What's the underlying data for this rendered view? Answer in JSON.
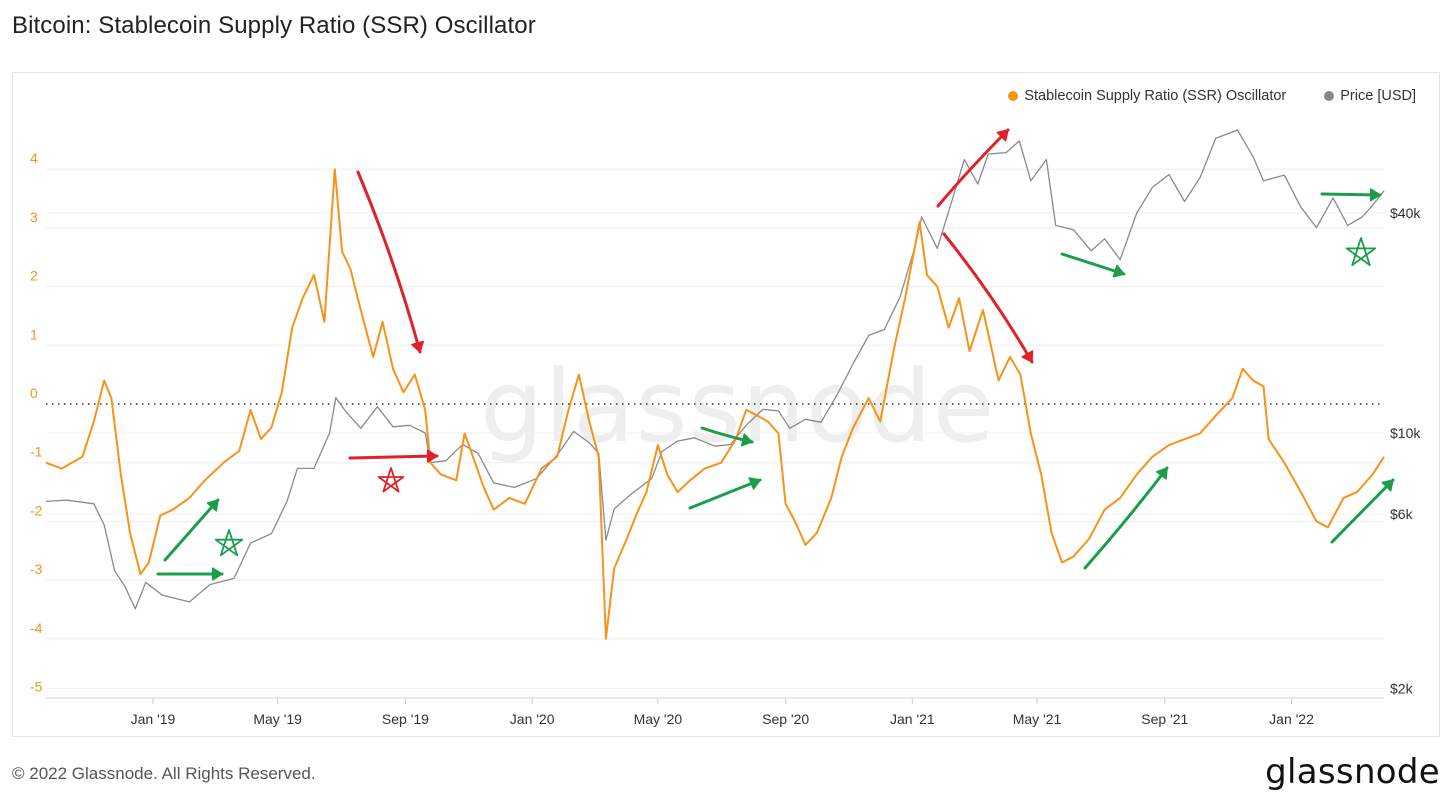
{
  "title": "Bitcoin: Stablecoin Supply Ratio (SSR) Oscillator",
  "footer": "© 2022 Glassnode. All Rights Reserved.",
  "brand": "glassnode",
  "watermark": "glassnode",
  "colors": {
    "ssr": "#f7931a",
    "price": "#888888",
    "red_annot": "#e0202a",
    "green_annot": "#1a9e4b"
  },
  "chart_data": {
    "type": "line",
    "x_ticks": [
      "Jan '19",
      "May '19",
      "Sep '19",
      "Jan '20",
      "May '20",
      "Sep '20",
      "Jan '21",
      "May '21",
      "Sep '21",
      "Jan '22"
    ],
    "y_left_ticks": [
      "4",
      "3",
      "2",
      "1",
      "0",
      "-1",
      "-2",
      "-3",
      "-4",
      "-5"
    ],
    "y_left_range": [
      -5,
      4.5
    ],
    "y_right_ticks": [
      "$40k",
      "$10k",
      "$6k",
      "$2k"
    ],
    "y_right_scale": "log",
    "reference_line_y": 0,
    "legend_position": "top-right",
    "series": [
      {
        "name": "Stablecoin Supply Ratio (SSR) Oscillator",
        "axis": "left",
        "points": [
          [
            "2018-09-20",
            -1.0
          ],
          [
            "2018-10-05",
            -1.1
          ],
          [
            "2018-10-25",
            -0.9
          ],
          [
            "2018-11-05",
            -0.3
          ],
          [
            "2018-11-15",
            0.4
          ],
          [
            "2018-11-22",
            0.1
          ],
          [
            "2018-12-01",
            -1.2
          ],
          [
            "2018-12-10",
            -2.2
          ],
          [
            "2018-12-20",
            -2.9
          ],
          [
            "2018-12-28",
            -2.7
          ],
          [
            "2019-01-08",
            -1.9
          ],
          [
            "2019-01-20",
            -1.8
          ],
          [
            "2019-02-05",
            -1.6
          ],
          [
            "2019-02-20",
            -1.3
          ],
          [
            "2019-03-10",
            -1.0
          ],
          [
            "2019-03-25",
            -0.8
          ],
          [
            "2019-04-05",
            -0.1
          ],
          [
            "2019-04-15",
            -0.6
          ],
          [
            "2019-04-25",
            -0.4
          ],
          [
            "2019-05-05",
            0.2
          ],
          [
            "2019-05-15",
            1.3
          ],
          [
            "2019-05-25",
            1.8
          ],
          [
            "2019-06-05",
            2.2
          ],
          [
            "2019-06-15",
            1.4
          ],
          [
            "2019-06-25",
            4.0
          ],
          [
            "2019-07-02",
            2.6
          ],
          [
            "2019-07-10",
            2.3
          ],
          [
            "2019-07-20",
            1.6
          ],
          [
            "2019-08-01",
            0.8
          ],
          [
            "2019-08-10",
            1.4
          ],
          [
            "2019-08-20",
            0.6
          ],
          [
            "2019-08-30",
            0.2
          ],
          [
            "2019-09-10",
            0.5
          ],
          [
            "2019-09-20",
            -0.1
          ],
          [
            "2019-09-25",
            -1.0
          ],
          [
            "2019-10-05",
            -1.2
          ],
          [
            "2019-10-20",
            -1.3
          ],
          [
            "2019-10-28",
            -0.5
          ],
          [
            "2019-11-05",
            -0.9
          ],
          [
            "2019-11-15",
            -1.4
          ],
          [
            "2019-11-25",
            -1.8
          ],
          [
            "2019-12-10",
            -1.6
          ],
          [
            "2019-12-25",
            -1.7
          ],
          [
            "2020-01-10",
            -1.1
          ],
          [
            "2020-01-25",
            -0.9
          ],
          [
            "2020-02-05",
            -0.1
          ],
          [
            "2020-02-15",
            0.5
          ],
          [
            "2020-02-25",
            -0.3
          ],
          [
            "2020-03-05",
            -0.9
          ],
          [
            "2020-03-12",
            -4.0
          ],
          [
            "2020-03-20",
            -2.8
          ],
          [
            "2020-04-01",
            -2.3
          ],
          [
            "2020-04-10",
            -1.9
          ],
          [
            "2020-04-20",
            -1.5
          ],
          [
            "2020-05-01",
            -0.7
          ],
          [
            "2020-05-10",
            -1.2
          ],
          [
            "2020-05-20",
            -1.5
          ],
          [
            "2020-06-01",
            -1.3
          ],
          [
            "2020-06-15",
            -1.1
          ],
          [
            "2020-07-01",
            -1.0
          ],
          [
            "2020-07-15",
            -0.6
          ],
          [
            "2020-07-25",
            -0.1
          ],
          [
            "2020-08-05",
            -0.2
          ],
          [
            "2020-08-15",
            -0.3
          ],
          [
            "2020-08-25",
            -0.5
          ],
          [
            "2020-09-01",
            -1.7
          ],
          [
            "2020-09-10",
            -2.0
          ],
          [
            "2020-09-20",
            -2.4
          ],
          [
            "2020-10-01",
            -2.2
          ],
          [
            "2020-10-15",
            -1.6
          ],
          [
            "2020-10-25",
            -0.9
          ],
          [
            "2020-11-05",
            -0.4
          ],
          [
            "2020-11-20",
            0.1
          ],
          [
            "2020-12-01",
            -0.3
          ],
          [
            "2020-12-15",
            1.0
          ],
          [
            "2020-12-25",
            1.8
          ],
          [
            "2021-01-08",
            3.1
          ],
          [
            "2021-01-15",
            2.2
          ],
          [
            "2021-01-25",
            2.0
          ],
          [
            "2021-02-05",
            1.3
          ],
          [
            "2021-02-15",
            1.8
          ],
          [
            "2021-02-25",
            0.9
          ],
          [
            "2021-03-10",
            1.6
          ],
          [
            "2021-03-25",
            0.4
          ],
          [
            "2021-04-05",
            0.8
          ],
          [
            "2021-04-15",
            0.5
          ],
          [
            "2021-04-25",
            -0.5
          ],
          [
            "2021-05-05",
            -1.2
          ],
          [
            "2021-05-15",
            -2.2
          ],
          [
            "2021-05-25",
            -2.7
          ],
          [
            "2021-06-05",
            -2.6
          ],
          [
            "2021-06-20",
            -2.3
          ],
          [
            "2021-07-05",
            -1.8
          ],
          [
            "2021-07-20",
            -1.6
          ],
          [
            "2021-08-05",
            -1.2
          ],
          [
            "2021-08-20",
            -0.9
          ],
          [
            "2021-09-05",
            -0.7
          ],
          [
            "2021-09-20",
            -0.6
          ],
          [
            "2021-10-05",
            -0.5
          ],
          [
            "2021-10-20",
            -0.2
          ],
          [
            "2021-11-05",
            0.1
          ],
          [
            "2021-11-15",
            0.6
          ],
          [
            "2021-11-25",
            0.4
          ],
          [
            "2021-12-05",
            0.3
          ],
          [
            "2021-12-10",
            -0.6
          ],
          [
            "2021-12-25",
            -1.0
          ],
          [
            "2022-01-10",
            -1.5
          ],
          [
            "2022-01-25",
            -2.0
          ],
          [
            "2022-02-05",
            -2.1
          ],
          [
            "2022-02-20",
            -1.6
          ],
          [
            "2022-03-05",
            -1.5
          ],
          [
            "2022-03-20",
            -1.2
          ],
          [
            "2022-03-31",
            -0.9
          ]
        ]
      },
      {
        "name": "Price [USD]",
        "axis": "right",
        "points": [
          [
            "2018-09-20",
            6500
          ],
          [
            "2018-10-10",
            6550
          ],
          [
            "2018-11-05",
            6400
          ],
          [
            "2018-11-15",
            5600
          ],
          [
            "2018-11-25",
            4200
          ],
          [
            "2018-12-05",
            3800
          ],
          [
            "2018-12-15",
            3300
          ],
          [
            "2018-12-25",
            3900
          ],
          [
            "2019-01-10",
            3600
          ],
          [
            "2019-02-05",
            3450
          ],
          [
            "2019-02-25",
            3850
          ],
          [
            "2019-03-20",
            4000
          ],
          [
            "2019-04-05",
            5000
          ],
          [
            "2019-04-25",
            5300
          ],
          [
            "2019-05-10",
            6500
          ],
          [
            "2019-05-20",
            8000
          ],
          [
            "2019-06-05",
            8000
          ],
          [
            "2019-06-20",
            10000
          ],
          [
            "2019-06-26",
            12500
          ],
          [
            "2019-07-05",
            11500
          ],
          [
            "2019-07-20",
            10300
          ],
          [
            "2019-08-05",
            11800
          ],
          [
            "2019-08-20",
            10400
          ],
          [
            "2019-09-05",
            10500
          ],
          [
            "2019-09-20",
            10000
          ],
          [
            "2019-09-25",
            8300
          ],
          [
            "2019-10-10",
            8400
          ],
          [
            "2019-10-26",
            9300
          ],
          [
            "2019-11-10",
            8800
          ],
          [
            "2019-11-25",
            7300
          ],
          [
            "2019-12-15",
            7100
          ],
          [
            "2020-01-05",
            7500
          ],
          [
            "2020-01-25",
            8700
          ],
          [
            "2020-02-10",
            10100
          ],
          [
            "2020-02-25",
            9400
          ],
          [
            "2020-03-05",
            8800
          ],
          [
            "2020-03-12",
            5100
          ],
          [
            "2020-03-20",
            6200
          ],
          [
            "2020-04-05",
            6800
          ],
          [
            "2020-04-25",
            7500
          ],
          [
            "2020-05-05",
            8900
          ],
          [
            "2020-05-20",
            9500
          ],
          [
            "2020-06-05",
            9700
          ],
          [
            "2020-06-25",
            9200
          ],
          [
            "2020-07-10",
            9300
          ],
          [
            "2020-07-25",
            10500
          ],
          [
            "2020-08-10",
            11600
          ],
          [
            "2020-08-25",
            11500
          ],
          [
            "2020-09-05",
            10300
          ],
          [
            "2020-09-20",
            10900
          ],
          [
            "2020-10-05",
            10700
          ],
          [
            "2020-10-21",
            12800
          ],
          [
            "2020-11-05",
            15500
          ],
          [
            "2020-11-20",
            18500
          ],
          [
            "2020-12-05",
            19200
          ],
          [
            "2020-12-20",
            23500
          ],
          [
            "2021-01-03",
            32000
          ],
          [
            "2021-01-10",
            39000
          ],
          [
            "2021-01-25",
            32000
          ],
          [
            "2021-02-10",
            45000
          ],
          [
            "2021-02-20",
            56000
          ],
          [
            "2021-03-05",
            48000
          ],
          [
            "2021-03-15",
            58000
          ],
          [
            "2021-04-01",
            58500
          ],
          [
            "2021-04-14",
            63000
          ],
          [
            "2021-04-25",
            49000
          ],
          [
            "2021-05-10",
            56000
          ],
          [
            "2021-05-19",
            37000
          ],
          [
            "2021-06-05",
            36000
          ],
          [
            "2021-06-22",
            31500
          ],
          [
            "2021-07-05",
            34000
          ],
          [
            "2021-07-20",
            29800
          ],
          [
            "2021-08-05",
            40000
          ],
          [
            "2021-08-20",
            47000
          ],
          [
            "2021-09-05",
            51000
          ],
          [
            "2021-09-20",
            43000
          ],
          [
            "2021-10-05",
            50000
          ],
          [
            "2021-10-20",
            64000
          ],
          [
            "2021-11-10",
            67500
          ],
          [
            "2021-11-25",
            57000
          ],
          [
            "2021-12-05",
            49000
          ],
          [
            "2021-12-25",
            50800
          ],
          [
            "2022-01-10",
            41500
          ],
          [
            "2022-01-25",
            36500
          ],
          [
            "2022-02-10",
            44000
          ],
          [
            "2022-02-24",
            37000
          ],
          [
            "2022-03-10",
            39000
          ],
          [
            "2022-03-20",
            42000
          ],
          [
            "2022-03-31",
            46000
          ]
        ]
      }
    ]
  }
}
